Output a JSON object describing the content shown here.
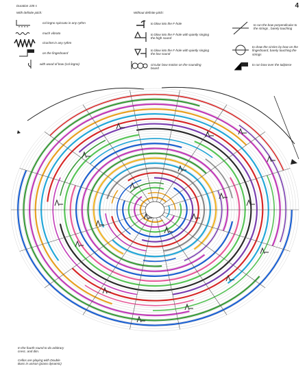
{
  "page": {
    "number": "4",
    "duration": "Duration 105 s"
  },
  "legend": {
    "with_pitch": {
      "heading": "With definite pitch:",
      "items": [
        {
          "icon": "col-legno-staccato-icon",
          "text": "col legno spiccato in any rythm"
        },
        {
          "icon": "much-vibrato-icon",
          "text": "much vibrato"
        },
        {
          "icon": "ricochet-icon",
          "text": "ricochet  in any rythm"
        },
        {
          "icon": "fingerboard-icon",
          "text": "on the fingerboard"
        },
        {
          "icon": "bow-wood-icon",
          "text": "with wood of bow (col legno)"
        }
      ]
    },
    "without_pitch": {
      "heading": "Without definite pitch:",
      "items": [
        {
          "icon": "blow-f-hole-icon",
          "text": "to blow into the F-hole"
        },
        {
          "icon": "blow-sing-high-icon",
          "text": "to blow into the F-hole with quietly singing the high sound"
        },
        {
          "icon": "blow-sing-low-icon",
          "text": "to blow into the F-hole with quietly singing the low sound"
        },
        {
          "icon": "circular-bow-icon",
          "text": "circular bow motion on the sounding board"
        }
      ]
    },
    "right_items": [
      {
        "icon": "slash-bow-icon",
        "text": "to run the bow perpendicular to the strings , barely touching"
      },
      {
        "icon": "circle-bow-icon",
        "text": "to draw the circles by bow on the fingerboard, barely touching the strings"
      },
      {
        "icon": "tailpiece-icon",
        "text": "to run bow over the tailpiece"
      }
    ]
  },
  "footer": {
    "note1": "In the fourth round to do arbitrary cresc. and dim.",
    "note2": "Cellos are playing with Double Bass in unison (piano dynamic)"
  },
  "score": {
    "ring_colors": [
      "#1b5fd0",
      "#3a9a3a",
      "#c23ab8",
      "#e8a020",
      "#23a7d8",
      "#d62828",
      "#7a3fb0",
      "#2a2a2a",
      "#57c457",
      "#e85c9a",
      "#1b5fd0",
      "#c23ab8",
      "#3a9a3a",
      "#f0b428",
      "#23a7d8",
      "#8a8a8a",
      "#d62828",
      "#7a3fb0",
      "#1b5fd0",
      "#57c457",
      "#c23ab8",
      "#e8a020"
    ]
  }
}
